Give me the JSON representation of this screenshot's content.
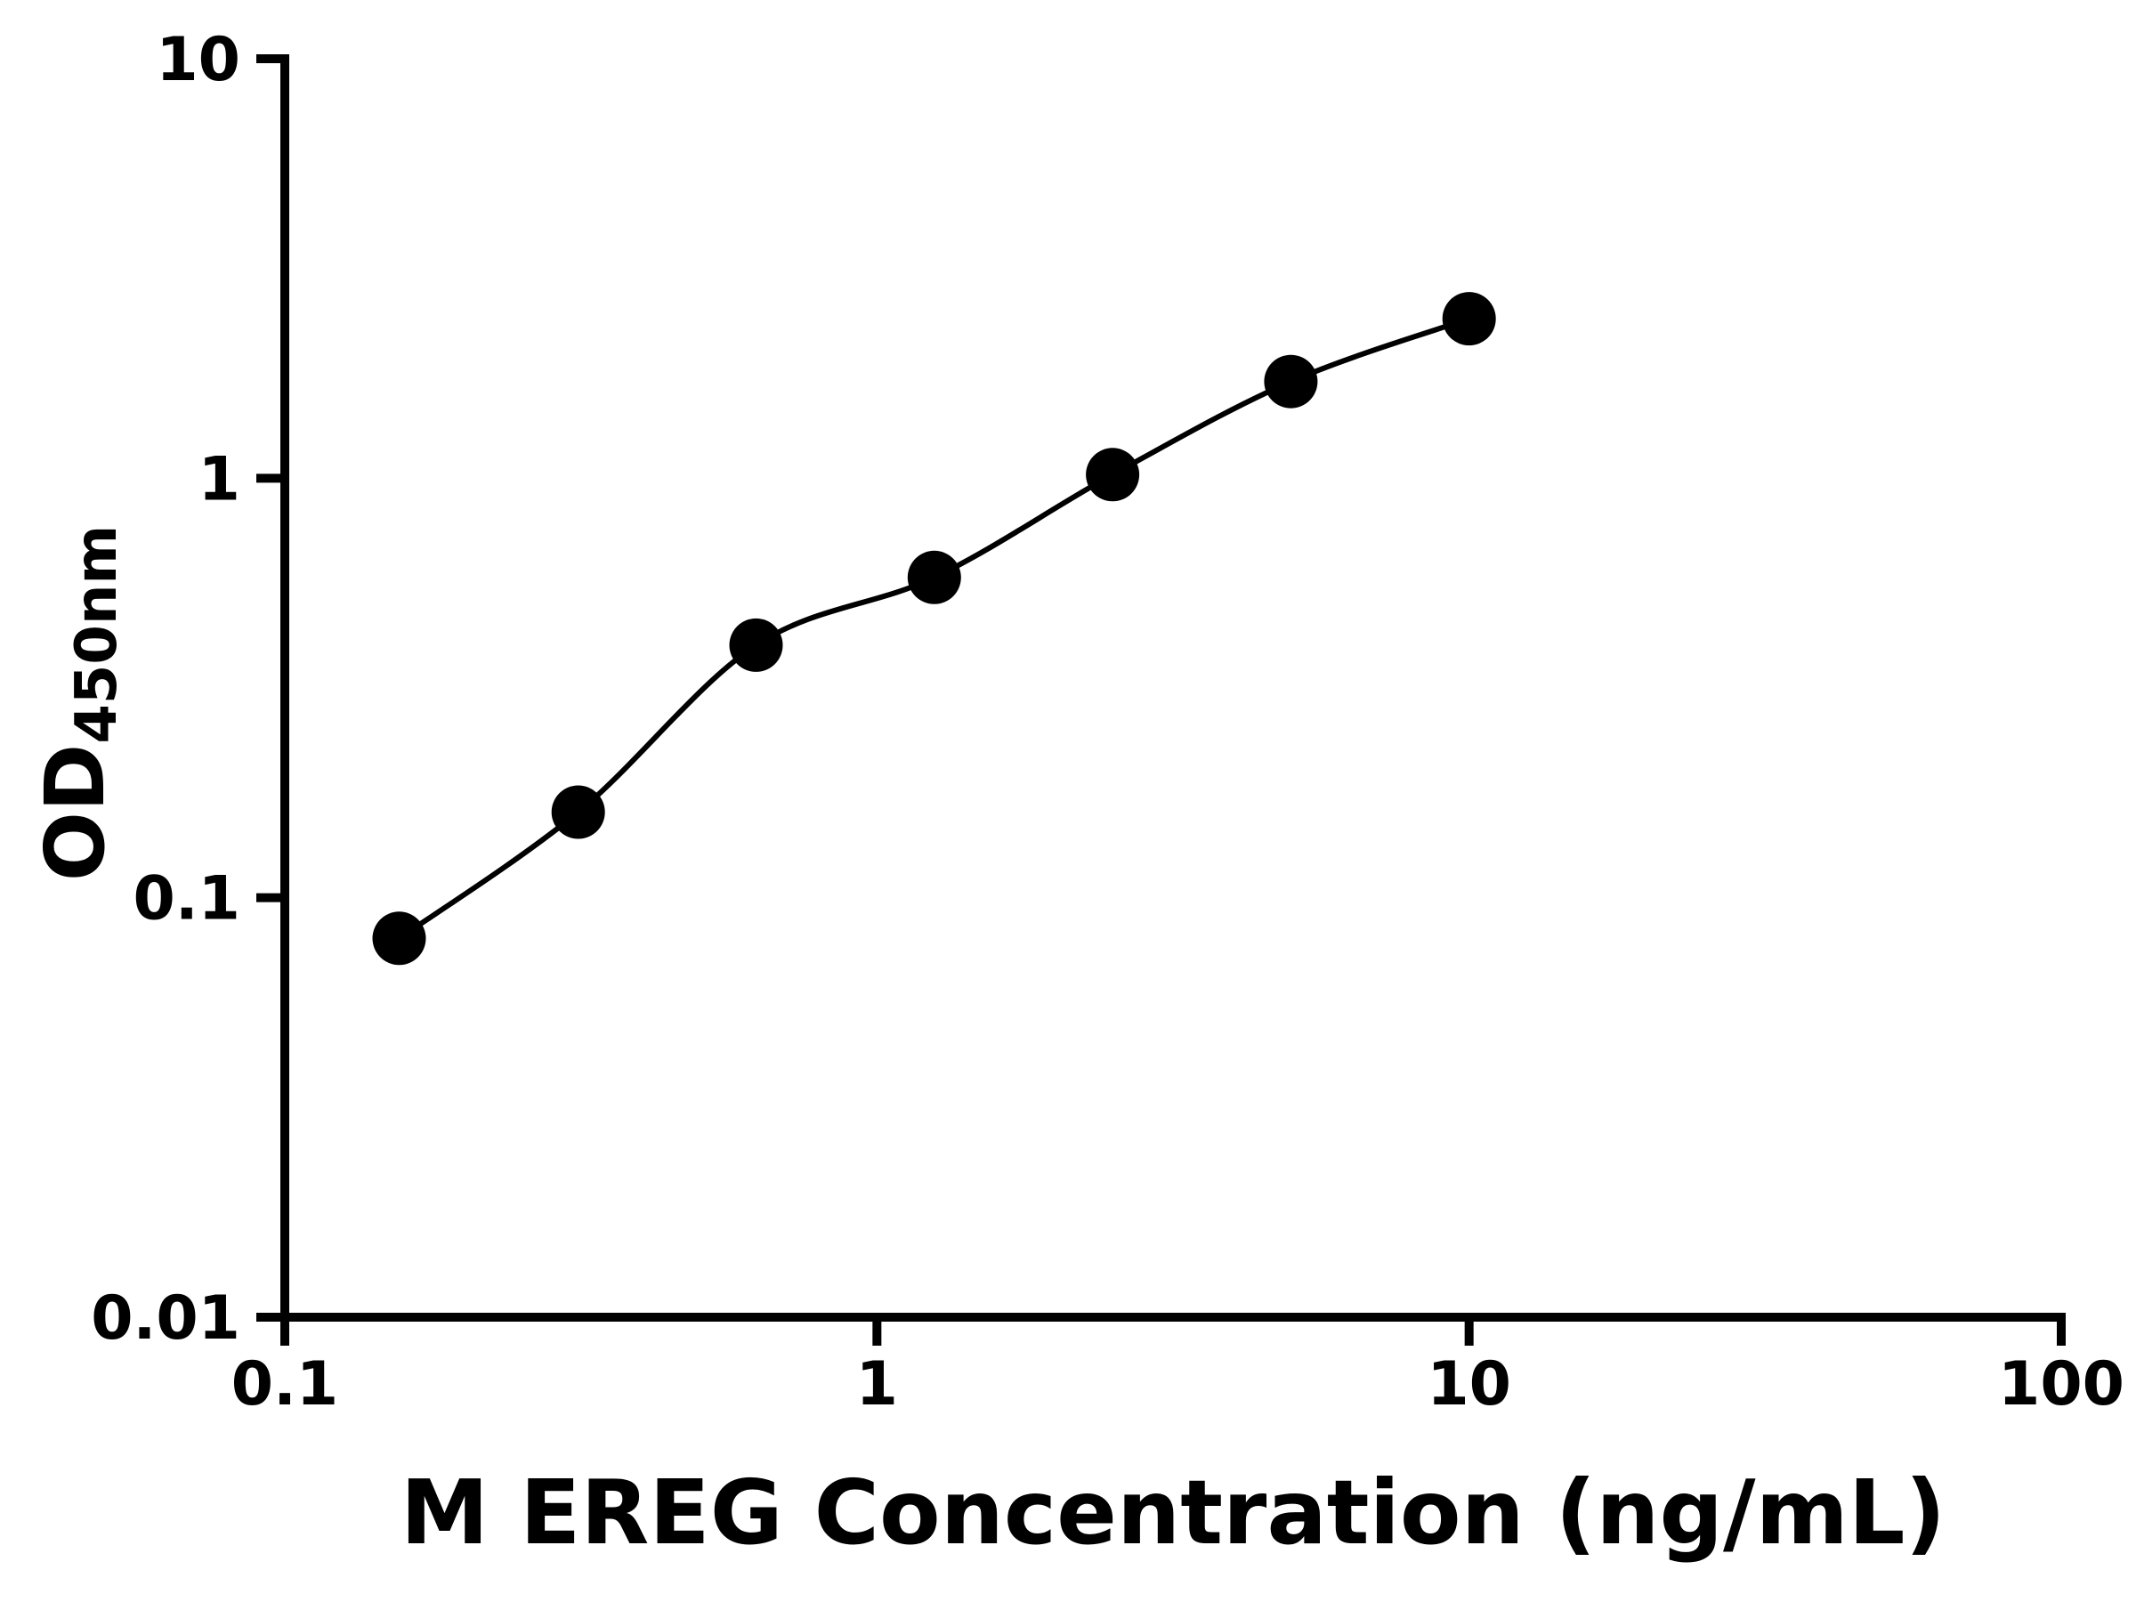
{
  "figure": {
    "background": "#ffffff",
    "foreground": "#000000"
  },
  "chart_data": {
    "type": "scatter",
    "title": "",
    "xlabel": "M EREG Concentration (ng/mL)",
    "ylabel_main": "OD",
    "ylabel_sub": "450nm",
    "x_scale": "log",
    "y_scale": "log",
    "xlim": [
      0.1,
      100
    ],
    "ylim": [
      0.01,
      10
    ],
    "x_ticks": [
      0.1,
      1,
      10,
      100
    ],
    "x_tick_labels": [
      "0.1",
      "1",
      "10",
      "100"
    ],
    "y_ticks": [
      0.01,
      0.1,
      1,
      10
    ],
    "y_tick_labels": [
      "0.01",
      "0.1",
      "1",
      "10"
    ],
    "grid": false,
    "legend": "none",
    "marker_color": "#000000",
    "line_color": "#000000",
    "series": [
      {
        "marker": "circle",
        "x": [
          0.156,
          0.313,
          0.625,
          1.25,
          2.5,
          5,
          10
        ],
        "y": [
          0.08,
          0.16,
          0.4,
          0.58,
          1.02,
          1.7,
          2.4
        ]
      }
    ]
  }
}
